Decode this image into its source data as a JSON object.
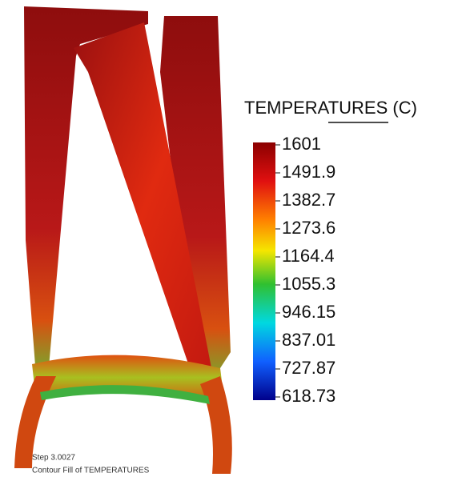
{
  "legend": {
    "title": "TEMPERATURES (C)",
    "ticks": [
      1601,
      1491.9,
      1382.7,
      1273.6,
      1164.4,
      1055.3,
      946.15,
      837.01,
      727.87,
      618.73
    ]
  },
  "caption": {
    "step": "Step 3.0027",
    "description": "Contour Fill of TEMPERATURES"
  }
}
